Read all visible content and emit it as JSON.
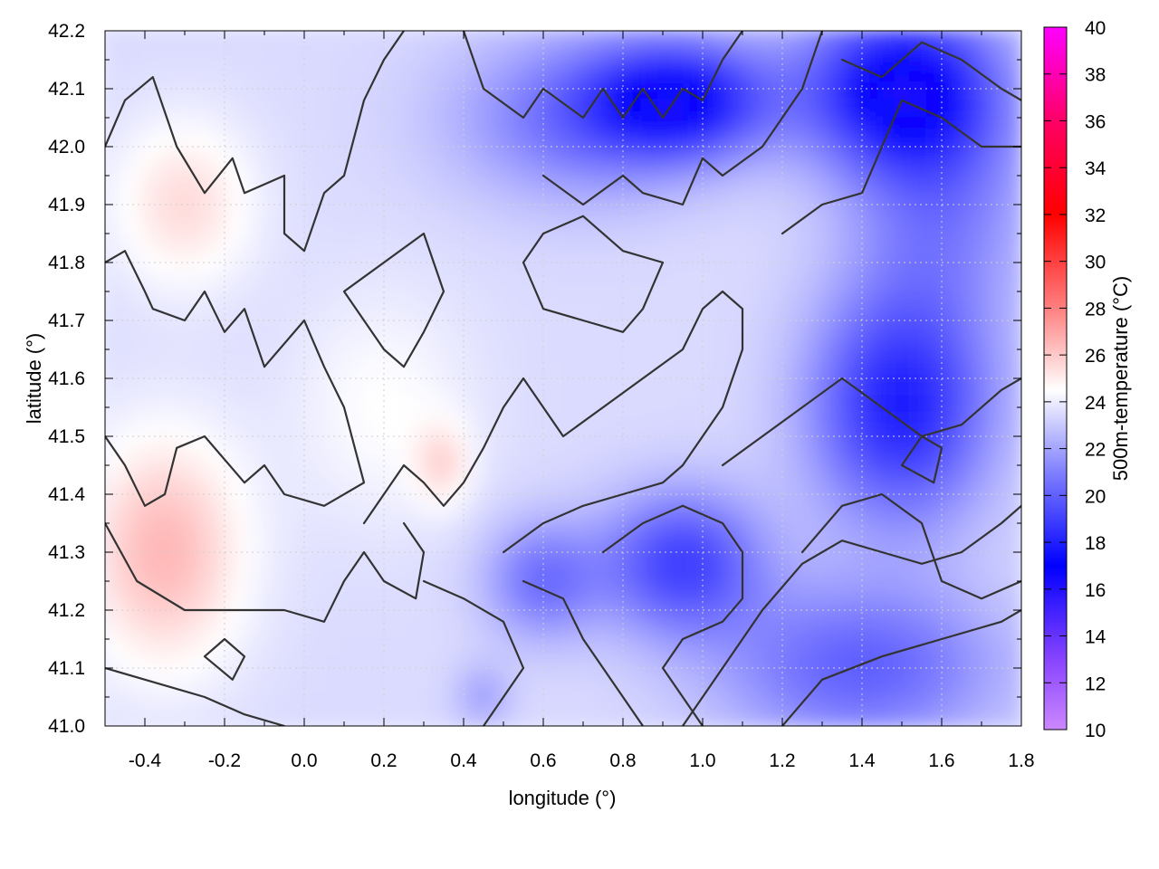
{
  "chart_data": {
    "type": "heatmap",
    "title": "",
    "xlabel": "longitude (°)",
    "ylabel": "latitude (°)",
    "colorbar_label": "500m-temperature (°C)",
    "xlim": [
      -0.5,
      1.8
    ],
    "ylim": [
      41.0,
      42.2
    ],
    "x_ticks": [
      "-0.4",
      "-0.2",
      "0.0",
      "0.2",
      "0.4",
      "0.6",
      "0.8",
      "1.0",
      "1.2",
      "1.4",
      "1.6",
      "1.8"
    ],
    "y_ticks": [
      "41.0",
      "41.1",
      "41.2",
      "41.3",
      "41.4",
      "41.5",
      "41.6",
      "41.7",
      "41.8",
      "41.9",
      "42.0",
      "42.1",
      "42.2"
    ],
    "colorbar_range": [
      10,
      40
    ],
    "colorbar_ticks": [
      "10",
      "12",
      "14",
      "16",
      "18",
      "20",
      "22",
      "24",
      "26",
      "28",
      "30",
      "32",
      "34",
      "36",
      "38",
      "40"
    ],
    "colormap": [
      {
        "value": 10,
        "color": "#cc88ff"
      },
      {
        "value": 13,
        "color": "#8844ff"
      },
      {
        "value": 17,
        "color": "#0000ff"
      },
      {
        "value": 21,
        "color": "#8080ff"
      },
      {
        "value": 24.5,
        "color": "#ffffff"
      },
      {
        "value": 28,
        "color": "#ff8080"
      },
      {
        "value": 32,
        "color": "#ff0000"
      },
      {
        "value": 36,
        "color": "#ff0066"
      },
      {
        "value": 40,
        "color": "#ff00ff"
      }
    ],
    "grid": true,
    "contours": [
      [
        [
          -0.5,
          42.0
        ],
        [
          -0.45,
          42.08
        ],
        [
          -0.38,
          42.12
        ],
        [
          -0.32,
          42.0
        ],
        [
          -0.25,
          41.92
        ],
        [
          -0.18,
          41.98
        ],
        [
          -0.15,
          41.92
        ],
        [
          -0.05,
          41.95
        ],
        [
          -0.05,
          41.85
        ],
        [
          0.0,
          41.82
        ],
        [
          0.05,
          41.92
        ],
        [
          0.1,
          41.95
        ],
        [
          0.15,
          42.08
        ],
        [
          0.2,
          42.15
        ],
        [
          0.25,
          42.2
        ]
      ],
      [
        [
          -0.5,
          41.8
        ],
        [
          -0.45,
          41.82
        ],
        [
          -0.4,
          41.75
        ],
        [
          -0.38,
          41.72
        ],
        [
          -0.3,
          41.7
        ],
        [
          -0.25,
          41.75
        ],
        [
          -0.2,
          41.68
        ],
        [
          -0.15,
          41.72
        ],
        [
          -0.1,
          41.62
        ],
        [
          0.0,
          41.7
        ],
        [
          0.05,
          41.62
        ],
        [
          0.1,
          41.55
        ],
        [
          0.15,
          41.42
        ],
        [
          0.05,
          41.38
        ],
        [
          -0.05,
          41.4
        ],
        [
          -0.1,
          41.45
        ],
        [
          -0.15,
          41.42
        ],
        [
          -0.25,
          41.5
        ],
        [
          -0.32,
          41.48
        ],
        [
          -0.35,
          41.4
        ],
        [
          -0.4,
          41.38
        ],
        [
          -0.45,
          41.45
        ],
        [
          -0.5,
          41.5
        ]
      ],
      [
        [
          -0.5,
          41.35
        ],
        [
          -0.42,
          41.25
        ],
        [
          -0.3,
          41.2
        ],
        [
          -0.2,
          41.2
        ],
        [
          -0.05,
          41.2
        ],
        [
          0.05,
          41.18
        ],
        [
          0.1,
          41.25
        ],
        [
          0.15,
          41.3
        ],
        [
          0.2,
          41.25
        ],
        [
          0.28,
          41.22
        ],
        [
          0.3,
          41.3
        ],
        [
          0.25,
          41.35
        ]
      ],
      [
        [
          -0.5,
          41.1
        ],
        [
          -0.4,
          41.08
        ],
        [
          -0.25,
          41.05
        ],
        [
          -0.15,
          41.02
        ],
        [
          -0.05,
          41.0
        ]
      ],
      [
        [
          0.15,
          41.35
        ],
        [
          0.2,
          41.4
        ],
        [
          0.25,
          41.45
        ],
        [
          0.3,
          41.42
        ],
        [
          0.35,
          41.38
        ],
        [
          0.4,
          41.42
        ],
        [
          0.45,
          41.48
        ],
        [
          0.5,
          41.55
        ],
        [
          0.55,
          41.6
        ],
        [
          0.6,
          41.55
        ],
        [
          0.65,
          41.5
        ],
        [
          0.75,
          41.55
        ],
        [
          0.85,
          41.6
        ],
        [
          0.95,
          41.65
        ],
        [
          1.0,
          41.72
        ],
        [
          1.05,
          41.75
        ],
        [
          1.1,
          41.72
        ],
        [
          1.1,
          41.65
        ],
        [
          1.05,
          41.55
        ],
        [
          1.0,
          41.5
        ],
        [
          0.95,
          41.45
        ],
        [
          0.9,
          41.42
        ],
        [
          0.8,
          41.4
        ],
        [
          0.7,
          41.38
        ],
        [
          0.6,
          41.35
        ],
        [
          0.5,
          41.3
        ]
      ],
      [
        [
          0.3,
          41.25
        ],
        [
          0.4,
          41.22
        ],
        [
          0.5,
          41.18
        ],
        [
          0.55,
          41.1
        ],
        [
          0.5,
          41.05
        ],
        [
          0.45,
          41.0
        ]
      ],
      [
        [
          0.55,
          41.25
        ],
        [
          0.65,
          41.22
        ],
        [
          0.7,
          41.15
        ],
        [
          0.75,
          41.1
        ],
        [
          0.8,
          41.05
        ],
        [
          0.85,
          41.0
        ]
      ],
      [
        [
          0.75,
          41.3
        ],
        [
          0.85,
          41.35
        ],
        [
          0.95,
          41.38
        ],
        [
          1.05,
          41.35
        ],
        [
          1.1,
          41.3
        ],
        [
          1.1,
          41.22
        ],
        [
          1.05,
          41.18
        ],
        [
          0.95,
          41.15
        ],
        [
          0.9,
          41.1
        ],
        [
          0.95,
          41.05
        ],
        [
          1.0,
          41.0
        ]
      ],
      [
        [
          0.95,
          41.0
        ],
        [
          1.05,
          41.1
        ],
        [
          1.15,
          41.2
        ],
        [
          1.25,
          41.28
        ],
        [
          1.35,
          41.32
        ],
        [
          1.45,
          41.3
        ],
        [
          1.55,
          41.28
        ],
        [
          1.65,
          41.3
        ],
        [
          1.75,
          41.35
        ],
        [
          1.8,
          41.38
        ]
      ],
      [
        [
          1.2,
          41.0
        ],
        [
          1.3,
          41.08
        ],
        [
          1.45,
          41.12
        ],
        [
          1.6,
          41.15
        ],
        [
          1.75,
          41.18
        ],
        [
          1.8,
          41.2
        ]
      ],
      [
        [
          1.05,
          41.45
        ],
        [
          1.15,
          41.5
        ],
        [
          1.25,
          41.55
        ],
        [
          1.35,
          41.6
        ],
        [
          1.45,
          41.55
        ],
        [
          1.55,
          41.5
        ],
        [
          1.65,
          41.52
        ],
        [
          1.75,
          41.58
        ],
        [
          1.8,
          41.6
        ]
      ],
      [
        [
          1.2,
          41.85
        ],
        [
          1.3,
          41.9
        ],
        [
          1.4,
          41.92
        ],
        [
          1.45,
          42.0
        ],
        [
          1.5,
          42.08
        ],
        [
          1.6,
          42.05
        ],
        [
          1.7,
          42.0
        ],
        [
          1.8,
          42.0
        ]
      ],
      [
        [
          0.4,
          42.2
        ],
        [
          0.45,
          42.1
        ],
        [
          0.55,
          42.05
        ],
        [
          0.6,
          42.1
        ],
        [
          0.7,
          42.05
        ],
        [
          0.75,
          42.1
        ],
        [
          0.8,
          42.05
        ],
        [
          0.85,
          42.1
        ],
        [
          0.9,
          42.05
        ],
        [
          0.95,
          42.1
        ],
        [
          1.0,
          42.08
        ],
        [
          1.05,
          42.15
        ],
        [
          1.1,
          42.2
        ]
      ],
      [
        [
          0.6,
          41.95
        ],
        [
          0.7,
          41.9
        ],
        [
          0.8,
          41.95
        ],
        [
          0.85,
          41.92
        ],
        [
          0.95,
          41.9
        ],
        [
          1.0,
          41.98
        ],
        [
          1.05,
          41.95
        ],
        [
          1.15,
          42.0
        ],
        [
          1.2,
          42.05
        ],
        [
          1.25,
          42.1
        ],
        [
          1.3,
          42.2
        ]
      ],
      [
        [
          1.35,
          42.15
        ],
        [
          1.45,
          42.12
        ],
        [
          1.55,
          42.18
        ],
        [
          1.65,
          42.15
        ],
        [
          1.75,
          42.1
        ],
        [
          1.8,
          42.08
        ]
      ],
      [
        [
          0.1,
          41.75
        ],
        [
          0.2,
          41.8
        ],
        [
          0.3,
          41.85
        ],
        [
          0.35,
          41.75
        ],
        [
          0.3,
          41.68
        ],
        [
          0.25,
          41.62
        ],
        [
          0.2,
          41.65
        ],
        [
          0.15,
          41.7
        ],
        [
          0.1,
          41.75
        ]
      ],
      [
        [
          0.55,
          41.8
        ],
        [
          0.6,
          41.85
        ],
        [
          0.7,
          41.88
        ],
        [
          0.8,
          41.82
        ],
        [
          0.9,
          41.8
        ],
        [
          0.85,
          41.72
        ],
        [
          0.8,
          41.68
        ],
        [
          0.7,
          41.7
        ],
        [
          0.6,
          41.72
        ],
        [
          0.55,
          41.8
        ]
      ],
      [
        [
          -0.25,
          41.12
        ],
        [
          -0.2,
          41.15
        ],
        [
          -0.15,
          41.12
        ],
        [
          -0.18,
          41.08
        ],
        [
          -0.25,
          41.12
        ]
      ],
      [
        [
          1.5,
          41.45
        ],
        [
          1.55,
          41.5
        ],
        [
          1.6,
          41.48
        ],
        [
          1.58,
          41.42
        ],
        [
          1.5,
          41.45
        ]
      ],
      [
        [
          1.25,
          41.3
        ],
        [
          1.35,
          41.38
        ],
        [
          1.45,
          41.4
        ],
        [
          1.55,
          41.35
        ],
        [
          1.6,
          41.25
        ],
        [
          1.7,
          41.22
        ],
        [
          1.8,
          41.25
        ]
      ]
    ]
  }
}
